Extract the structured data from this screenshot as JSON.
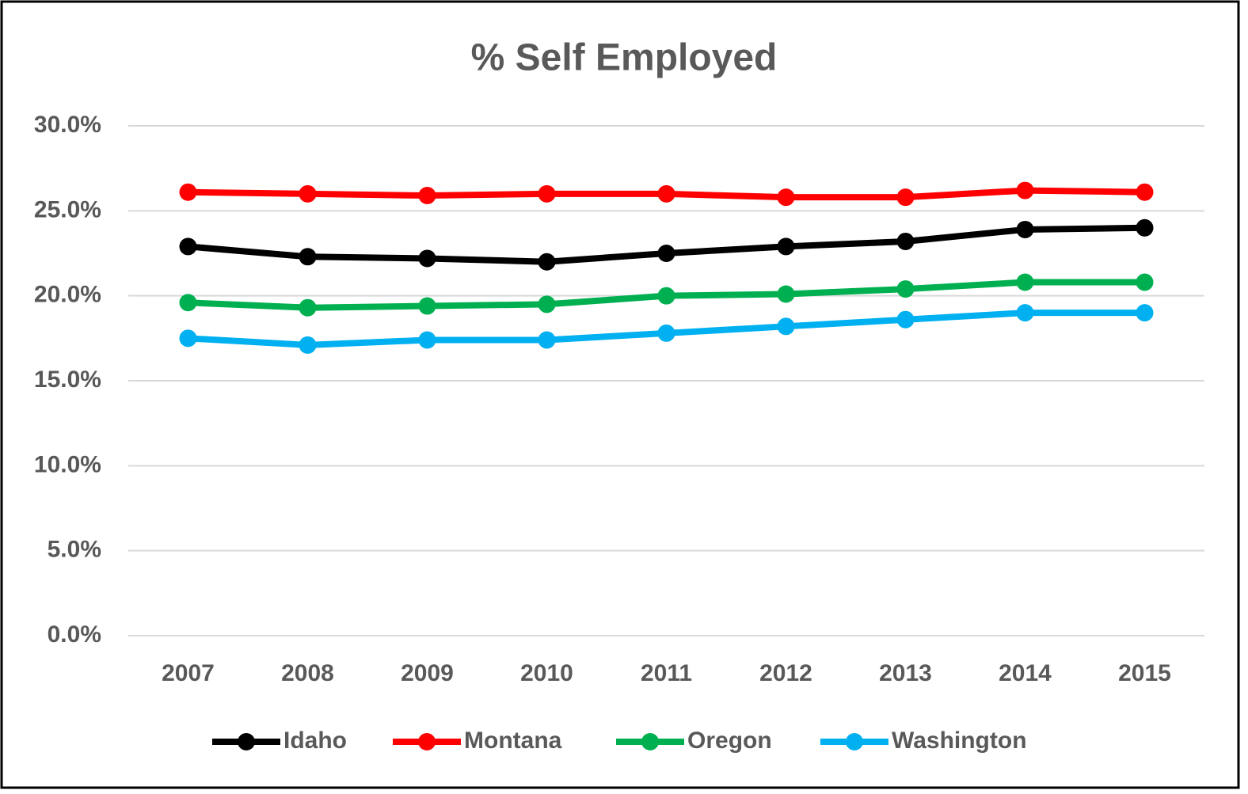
{
  "chart_data": {
    "type": "line",
    "title": "%  Self Employed",
    "categories": [
      "2007",
      "2008",
      "2009",
      "2010",
      "2011",
      "2012",
      "2013",
      "2014",
      "2015"
    ],
    "series": [
      {
        "name": "Idaho",
        "color": "#000000",
        "values": [
          22.9,
          22.3,
          22.2,
          22.0,
          22.5,
          22.9,
          23.2,
          23.9,
          24.0
        ]
      },
      {
        "name": "Montana",
        "color": "#ff0000",
        "values": [
          26.1,
          26.0,
          25.9,
          26.0,
          26.0,
          25.8,
          25.8,
          26.2,
          26.1
        ]
      },
      {
        "name": "Oregon",
        "color": "#00b050",
        "values": [
          19.6,
          19.3,
          19.4,
          19.5,
          20.0,
          20.1,
          20.4,
          20.8,
          20.8
        ]
      },
      {
        "name": "Washington",
        "color": "#00b0f0",
        "values": [
          17.5,
          17.1,
          17.4,
          17.4,
          17.8,
          18.2,
          18.6,
          19.0,
          19.0
        ]
      }
    ],
    "ylim": [
      0,
      30
    ],
    "yticks": [
      {
        "value": 0,
        "label": "0.0%"
      },
      {
        "value": 5,
        "label": "5.0%"
      },
      {
        "value": 10,
        "label": "10.0%"
      },
      {
        "value": 15,
        "label": "15.0%"
      },
      {
        "value": 20,
        "label": "20.0%"
      },
      {
        "value": 25,
        "label": "25.0%"
      },
      {
        "value": 30,
        "label": "30.0%"
      }
    ],
    "grid": true,
    "legend": "bottom"
  }
}
